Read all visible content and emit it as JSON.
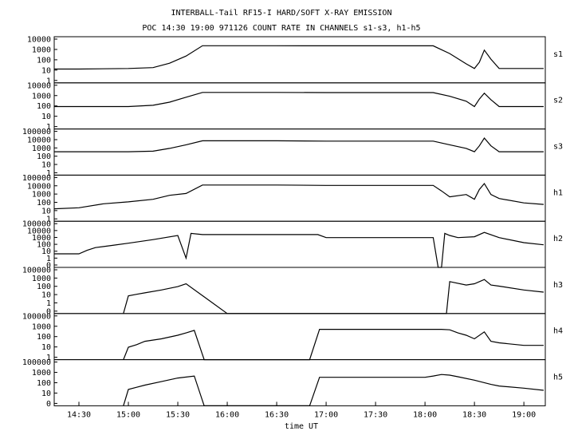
{
  "chart_data": {
    "type": "line",
    "title": "INTERBALL-Tail RF15-I HARD/SOFT X-RAY EMISSION",
    "subtitle": "POC 14:30 19:00 971126  COUNT RATE IN CHANNELS s1-s3, h1-h5",
    "xlabel": "time UT",
    "x_ticks": [
      "14:30",
      "15:00",
      "15:30",
      "16:00",
      "16:30",
      "17:00",
      "17:30",
      "18:00",
      "18:30",
      "19:00"
    ],
    "x_range": [
      "14:15",
      "19:13"
    ],
    "y_scale": "log",
    "grid": false,
    "legend": "channel name right of each panel",
    "color": "#000000",
    "panels": [
      {
        "name": "s1",
        "y_ticks": [
          "10000",
          "1000",
          "100",
          "10",
          "1"
        ],
        "ylim": [
          1,
          30000
        ],
        "x": [
          "14:15",
          "14:30",
          "15:00",
          "15:15",
          "15:25",
          "15:35",
          "15:45",
          "16:30",
          "17:00",
          "17:30",
          "18:00",
          "18:05",
          "18:15",
          "18:25",
          "18:30",
          "18:33",
          "18:36",
          "18:40",
          "18:45",
          "19:00",
          "19:12"
        ],
        "values": [
          22,
          22,
          25,
          30,
          80,
          400,
          4000,
          4000,
          3900,
          3900,
          3900,
          3900,
          700,
          70,
          25,
          100,
          1500,
          200,
          25,
          25,
          25
        ]
      },
      {
        "name": "s2",
        "y_ticks": [
          "10000",
          "1000",
          "100",
          "10",
          "1"
        ],
        "ylim": [
          1,
          30000
        ],
        "x": [
          "14:15",
          "14:30",
          "15:00",
          "15:15",
          "15:25",
          "15:35",
          "15:45",
          "16:30",
          "17:00",
          "17:30",
          "18:00",
          "18:05",
          "18:15",
          "18:25",
          "18:30",
          "18:33",
          "18:36",
          "18:40",
          "18:45",
          "19:00",
          "19:12"
        ],
        "values": [
          150,
          150,
          150,
          200,
          400,
          1200,
          3500,
          3500,
          3400,
          3400,
          3400,
          3400,
          1500,
          500,
          150,
          800,
          3000,
          700,
          150,
          150,
          150
        ]
      },
      {
        "name": "s3",
        "y_ticks": [
          "100000",
          "10000",
          "1000",
          "100",
          "10",
          "1"
        ],
        "ylim": [
          1,
          300000
        ],
        "x": [
          "14:15",
          "14:30",
          "15:00",
          "15:15",
          "15:25",
          "15:35",
          "15:45",
          "16:30",
          "17:00",
          "17:30",
          "18:00",
          "18:05",
          "18:15",
          "18:25",
          "18:30",
          "18:33",
          "18:36",
          "18:40",
          "18:45",
          "19:00",
          "19:12"
        ],
        "values": [
          600,
          600,
          600,
          700,
          1500,
          4000,
          12000,
          12000,
          11000,
          11000,
          11000,
          11000,
          4000,
          1500,
          600,
          3000,
          25000,
          3000,
          600,
          600,
          600
        ]
      },
      {
        "name": "h1",
        "y_ticks": [
          "100000",
          "10000",
          "1000",
          "100",
          "10",
          "1"
        ],
        "ylim": [
          1,
          300000
        ],
        "x": [
          "14:15",
          "14:30",
          "14:45",
          "15:00",
          "15:15",
          "15:25",
          "15:35",
          "15:45",
          "16:30",
          "17:00",
          "17:30",
          "18:00",
          "18:05",
          "18:10",
          "18:15",
          "18:25",
          "18:30",
          "18:33",
          "18:36",
          "18:40",
          "18:45",
          "19:00",
          "19:12"
        ],
        "values": [
          30,
          40,
          120,
          200,
          400,
          1200,
          2000,
          20000,
          20000,
          18000,
          18000,
          18000,
          18000,
          4000,
          800,
          1500,
          400,
          6000,
          30000,
          1500,
          500,
          150,
          100
        ]
      },
      {
        "name": "h2",
        "y_ticks": [
          "100000",
          "10000",
          "1000",
          "100",
          "10",
          "1",
          "0"
        ],
        "ylim": [
          0.1,
          300000
        ],
        "x": [
          "14:15",
          "14:30",
          "14:35",
          "14:40",
          "14:50",
          "15:00",
          "15:15",
          "15:30",
          "15:35",
          "15:38",
          "15:45",
          "16:30",
          "16:55",
          "17:00",
          "17:30",
          "18:00",
          "18:05",
          "18:08",
          "18:10",
          "18:12",
          "18:15",
          "18:20",
          "18:30",
          "18:36",
          "18:45",
          "19:00",
          "19:12"
        ],
        "values": [
          8,
          8,
          25,
          60,
          120,
          250,
          800,
          3000,
          2,
          6000,
          4000,
          4000,
          4000,
          1500,
          1500,
          1500,
          1500,
          0.1,
          0.1,
          6000,
          3000,
          1500,
          2000,
          8000,
          1500,
          300,
          150
        ]
      },
      {
        "name": "h3",
        "y_ticks": [
          "100000",
          "1000",
          "100",
          "10",
          "1",
          "0"
        ],
        "ylim": [
          0.1,
          300000
        ],
        "x": [
          "14:57",
          "15:00",
          "15:05",
          "15:10",
          "15:20",
          "15:30",
          "15:35",
          "16:00",
          "17:00",
          "18:00",
          "18:13",
          "18:15",
          "18:25",
          "18:30",
          "18:36",
          "18:40",
          "18:45",
          "19:00",
          "19:12"
        ],
        "values": [
          0.1,
          30,
          50,
          80,
          200,
          600,
          1500,
          0.1,
          0.1,
          0.1,
          0.1,
          3000,
          1000,
          1500,
          6000,
          1000,
          700,
          200,
          100
        ]
      },
      {
        "name": "h4",
        "y_ticks": [
          "100000",
          "1000",
          "100",
          "10",
          "1"
        ],
        "ylim": [
          1,
          300000
        ],
        "x": [
          "14:57",
          "15:00",
          "15:05",
          "15:10",
          "15:20",
          "15:30",
          "15:35",
          "15:40",
          "15:46",
          "16:00",
          "16:50",
          "16:56",
          "17:00",
          "17:30",
          "18:00",
          "18:05",
          "18:10",
          "18:15",
          "18:20",
          "18:25",
          "18:30",
          "18:36",
          "18:40",
          "18:45",
          "19:00",
          "19:12"
        ],
        "values": [
          1,
          30,
          60,
          150,
          300,
          800,
          1500,
          3000,
          1,
          1,
          1,
          4000,
          4000,
          4000,
          4000,
          4000,
          4000,
          3500,
          1500,
          800,
          300,
          2000,
          150,
          100,
          50,
          50
        ]
      },
      {
        "name": "h5",
        "y_ticks": [
          "100000",
          "1000",
          "100",
          "10",
          "0"
        ],
        "ylim": [
          0.1,
          300000
        ],
        "x": [
          "14:57",
          "15:00",
          "15:05",
          "15:10",
          "15:20",
          "15:30",
          "15:40",
          "15:46",
          "16:00",
          "16:50",
          "16:56",
          "17:00",
          "17:30",
          "18:00",
          "18:05",
          "18:10",
          "18:15",
          "18:20",
          "18:30",
          "18:40",
          "18:45",
          "19:00",
          "19:12"
        ],
        "values": [
          0.1,
          20,
          40,
          80,
          250,
          800,
          1500,
          0.1,
          0.1,
          0.1,
          1000,
          1000,
          1000,
          1000,
          1500,
          2500,
          2000,
          1200,
          400,
          100,
          60,
          30,
          15
        ]
      }
    ]
  }
}
